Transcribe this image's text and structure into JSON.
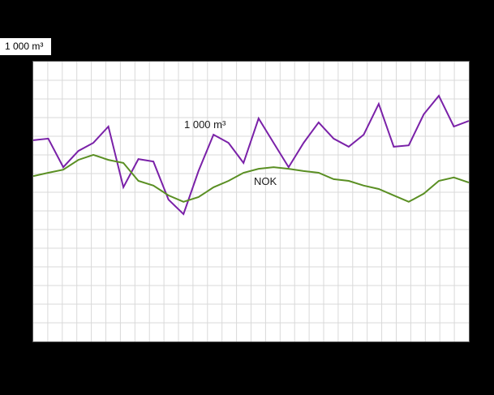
{
  "chart_data": {
    "type": "line",
    "title": "",
    "xlabel": "",
    "ylabel": "1 000 m³",
    "ylim": [
      0,
      100
    ],
    "grid": {
      "on": true,
      "x_divisions": 30,
      "y_divisions": 15,
      "color": "#d9d9d9"
    },
    "legend_position": "inline-annotations",
    "series": [
      {
        "id": "volume",
        "name": "1 000 m³",
        "color": "#7a21a8",
        "values": [
          71.9,
          72.5,
          62.3,
          68.1,
          71.0,
          76.8,
          55.1,
          65.2,
          64.3,
          50.7,
          45.5,
          60.9,
          73.9,
          71.0,
          63.8,
          79.7,
          71.0,
          62.3,
          71.0,
          78.3,
          72.5,
          69.6,
          73.9,
          84.9,
          69.6,
          70.1,
          81.2,
          87.8,
          76.8,
          78.8
        ]
      },
      {
        "id": "nok",
        "name": "NOK",
        "color": "#5a8f23",
        "values": [
          59.1,
          60.3,
          61.4,
          64.9,
          66.7,
          64.9,
          63.8,
          57.4,
          55.7,
          52.2,
          49.9,
          51.6,
          55.1,
          57.4,
          60.3,
          61.7,
          62.3,
          61.7,
          60.9,
          60.3,
          58.0,
          57.4,
          55.7,
          54.5,
          52.2,
          49.9,
          52.8,
          57.4,
          58.6,
          56.8
        ]
      }
    ]
  },
  "colors": {
    "background": "#000000",
    "plot_background": "#ffffff",
    "plot_border": "#595959",
    "gridline": "#d9d9d9",
    "annotation_text": "#1a1a1a",
    "series_volume": "#7a21a8",
    "series_nok": "#5a8f23"
  }
}
